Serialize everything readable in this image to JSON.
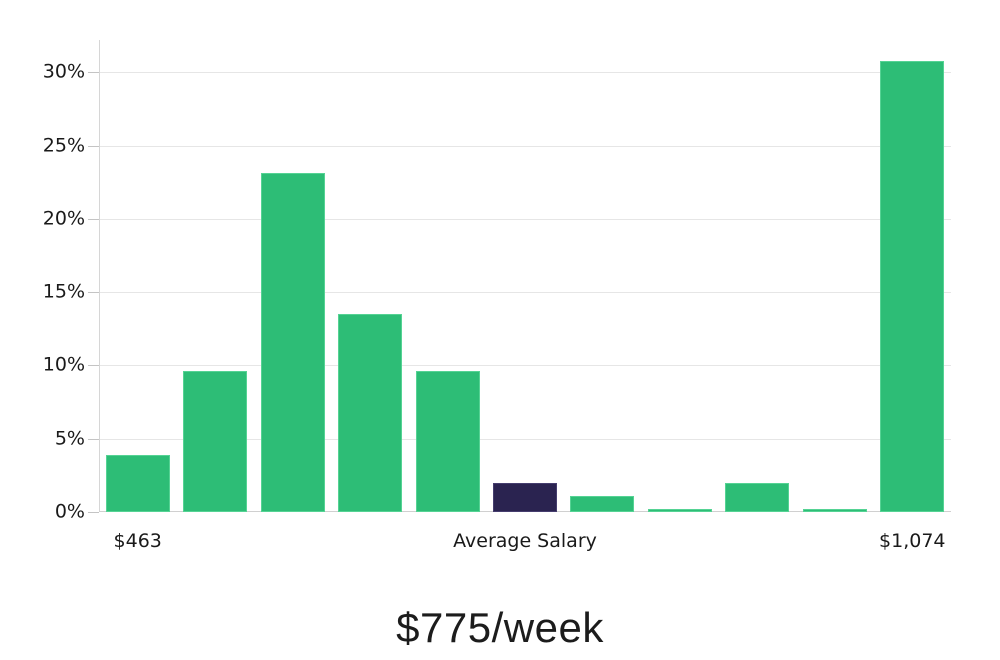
{
  "title": "$775/week",
  "colors": {
    "background": "#ffffff",
    "bar": "#2dbd76",
    "bar_border": "#55d394",
    "highlight_bar": "#2a2350",
    "highlight_border": "#453d6e",
    "gridline": "#e6e6e6",
    "zero_line": "#d0d0d0",
    "axis_line": "#d6d6d6",
    "tick_mark": "#c4c4c4",
    "tick_text": "#1a1a1a",
    "title_text": "#1c1c1c"
  },
  "chart_data": {
    "type": "bar",
    "title": "$775/week",
    "xlabel": "",
    "ylabel": "",
    "grid": true,
    "legend_position": "none",
    "ylim": [
      0,
      32.2
    ],
    "yticks": [
      {
        "value": 0,
        "label": "0%"
      },
      {
        "value": 5,
        "label": "5%"
      },
      {
        "value": 10,
        "label": "10%"
      },
      {
        "value": 15,
        "label": "15%"
      },
      {
        "value": 20,
        "label": "20%"
      },
      {
        "value": 25,
        "label": "25%"
      },
      {
        "value": 30,
        "label": "30%"
      }
    ],
    "values": [
      3.9,
      9.6,
      23.1,
      13.5,
      9.6,
      2.0,
      1.1,
      0.2,
      2.0,
      0.2,
      30.8
    ],
    "highlight_index": 5,
    "x_axis_labels": [
      {
        "text": "$463",
        "bar_index": 0
      },
      {
        "text": "Average Salary",
        "bar_index": 5
      },
      {
        "text": "$1,074",
        "bar_index": 10
      }
    ],
    "annotation": "Histogram of weekly salary distribution; dark bar marks the average salary bin"
  }
}
